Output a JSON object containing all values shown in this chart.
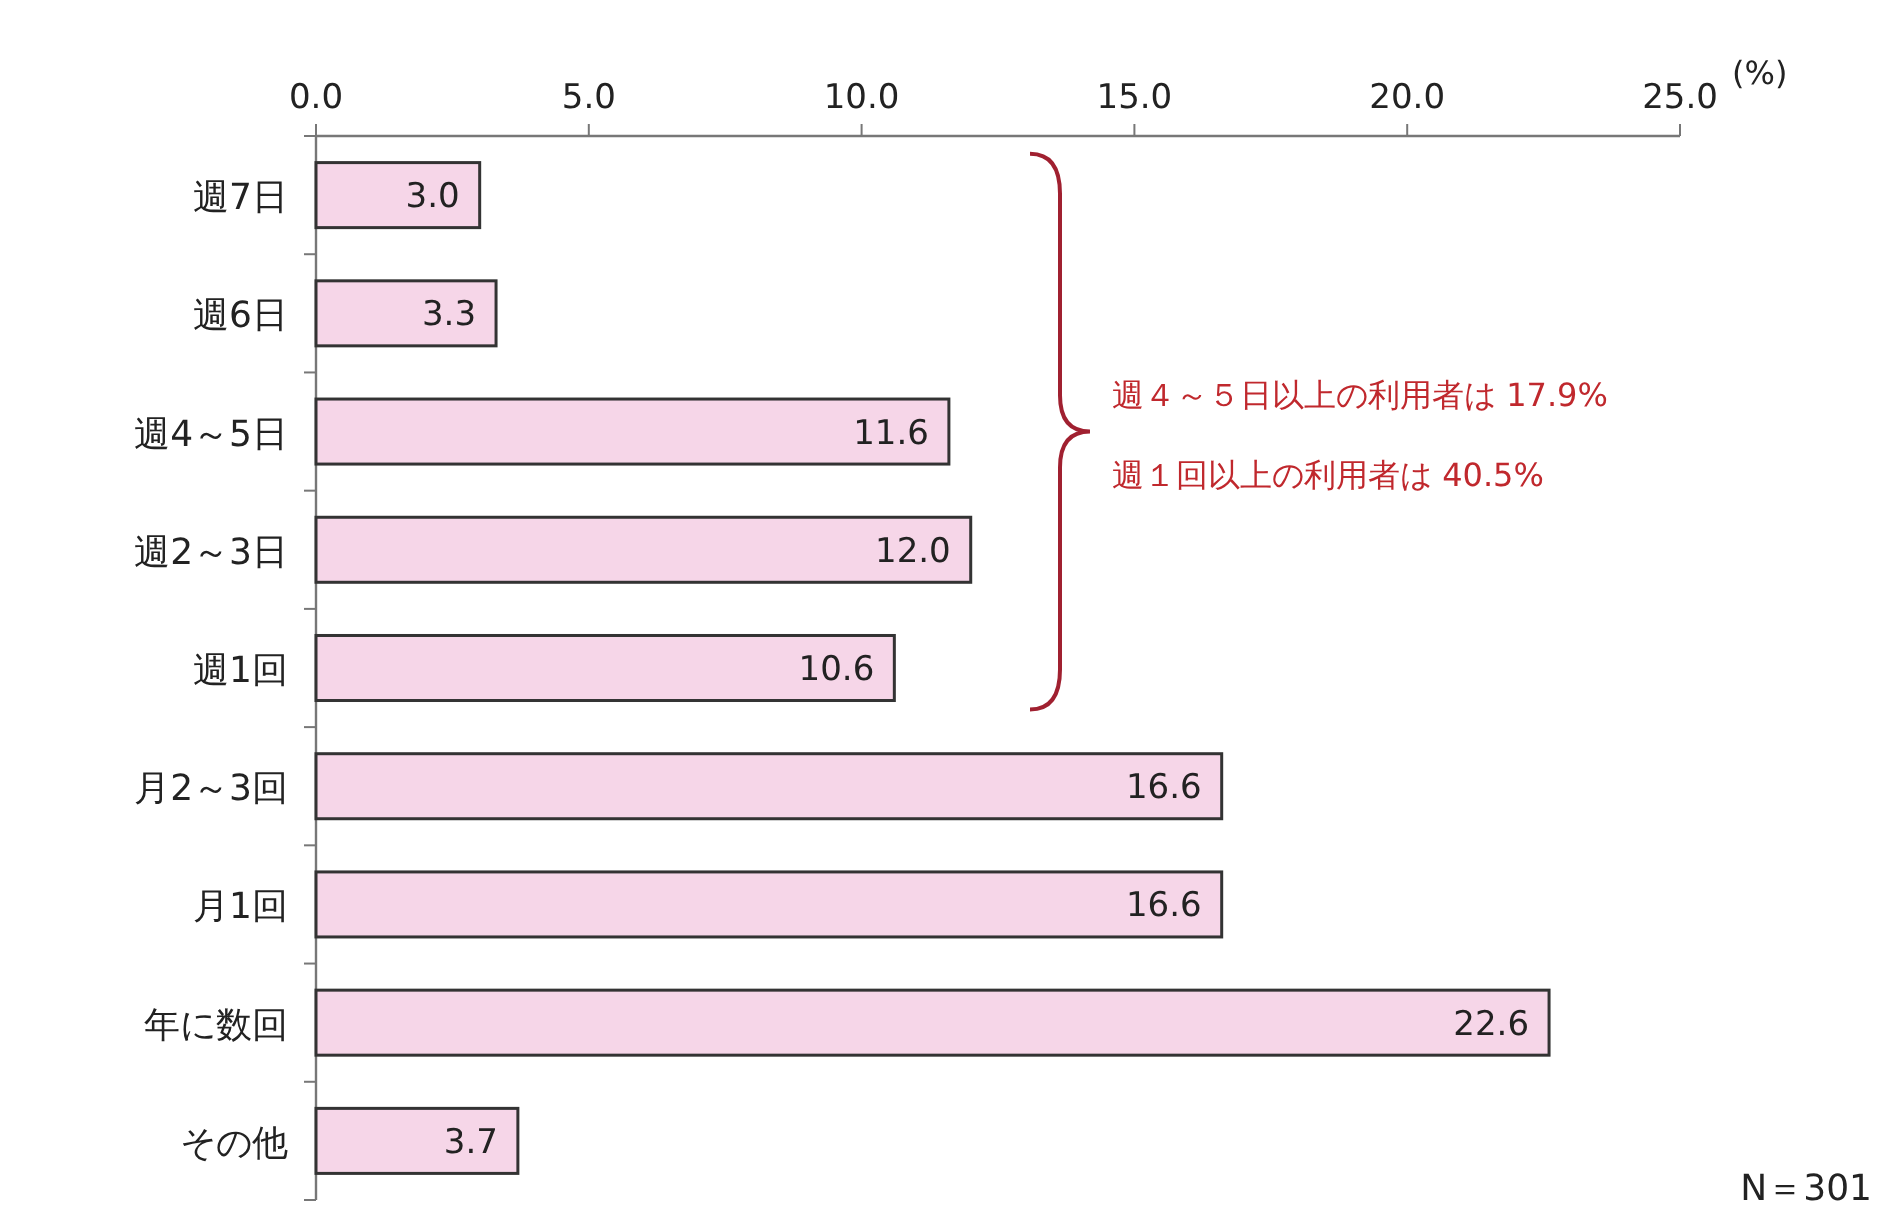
{
  "chart_data": {
    "type": "bar",
    "orientation": "horizontal",
    "categories": [
      "週7日",
      "週6日",
      "週4～5日",
      "週2～3日",
      "週1回",
      "月2～3回",
      "月1回",
      "年に数回",
      "その他"
    ],
    "values": [
      3.0,
      3.3,
      11.6,
      12.0,
      10.6,
      16.6,
      16.6,
      22.6,
      3.7
    ],
    "value_labels": [
      "3.0",
      "3.3",
      "11.6",
      "12.0",
      "10.6",
      "16.6",
      "16.6",
      "22.6",
      "3.7"
    ],
    "color": "#f6d6e8",
    "xlabel": "(%)",
    "xlim": [
      0,
      25
    ],
    "xticks": [
      {
        "value": 0,
        "label": "0.0"
      },
      {
        "value": 5,
        "label": "5.0"
      },
      {
        "value": 10,
        "label": "10.0"
      },
      {
        "value": 15,
        "label": "15.0"
      },
      {
        "value": 20,
        "label": "20.0"
      },
      {
        "value": 25,
        "label": "25.0"
      }
    ],
    "annotations": [
      "週４～５日以上の利用者は 17.9%",
      "週１回以上の利用者は 40.5%",
      "N＝301"
    ],
    "data_labels": false
  }
}
